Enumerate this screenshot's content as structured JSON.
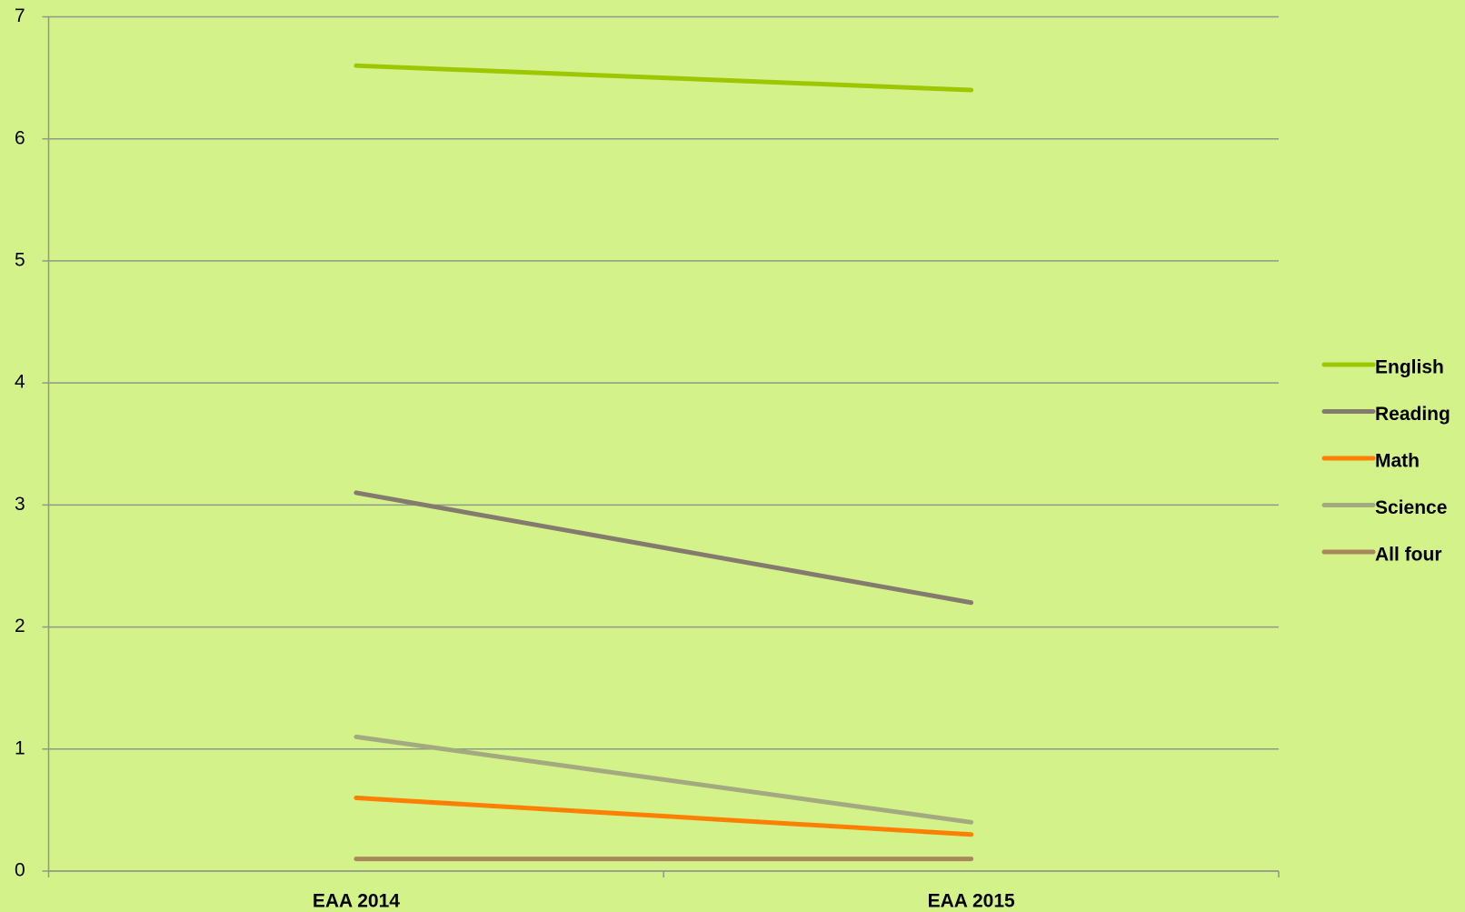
{
  "chart_data": {
    "type": "line",
    "categories": [
      "EAA 2014",
      "EAA 2015"
    ],
    "series": [
      {
        "name": "English",
        "color": "#9dc800",
        "values": [
          6.6,
          6.4
        ]
      },
      {
        "name": "Reading",
        "color": "#857a6e",
        "values": [
          3.1,
          2.2
        ]
      },
      {
        "name": "Math",
        "color": "#ff8000",
        "values": [
          0.6,
          0.3
        ]
      },
      {
        "name": "Science",
        "color": "#a3aa80",
        "values": [
          1.1,
          0.4
        ]
      },
      {
        "name": "All four",
        "color": "#a8875a",
        "values": [
          0.1,
          0.1
        ]
      }
    ],
    "ylim": [
      0,
      7
    ],
    "yticks": [
      0,
      1,
      2,
      3,
      4,
      5,
      6,
      7
    ],
    "grid": true,
    "legend": "right"
  }
}
